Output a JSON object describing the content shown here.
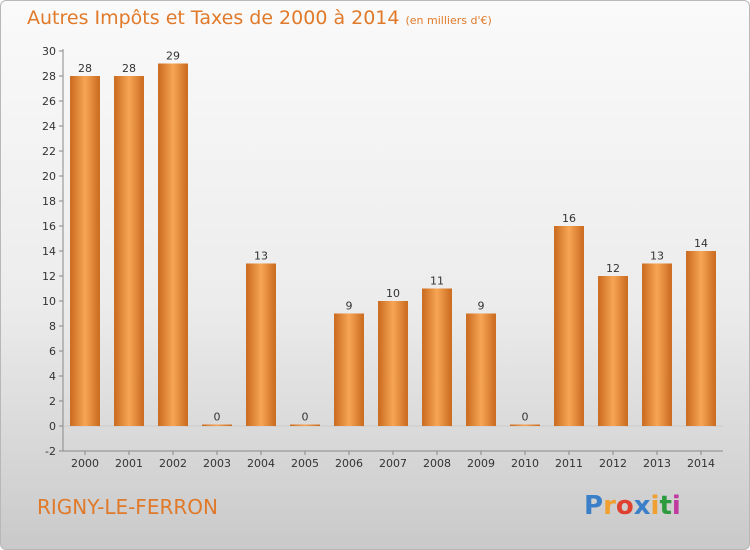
{
  "title": "Autres Impôts et Taxes de 2000 à 2014",
  "unit_note": "(en milliers d'€)",
  "commune": "RIGNY-LE-FERRON",
  "logo": {
    "letters": [
      "P",
      "r",
      "o",
      "x",
      "i",
      "t",
      "i"
    ],
    "colors": [
      "#3a7fc8",
      "#f0a030",
      "#e04030",
      "#3a7fc8",
      "#f0a030",
      "#2e9a3e",
      "#c03aa0"
    ]
  },
  "colors": {
    "title": "#e07a2a",
    "bar_light": "#f7a655",
    "bar_dark": "#c9691e",
    "axis_text": "#333333"
  },
  "chart_data": {
    "type": "bar",
    "categories": [
      "2000",
      "2001",
      "2002",
      "2003",
      "2004",
      "2005",
      "2006",
      "2007",
      "2008",
      "2009",
      "2010",
      "2011",
      "2012",
      "2013",
      "2014"
    ],
    "values": [
      28,
      28,
      29,
      0,
      13,
      0,
      9,
      10,
      11,
      9,
      0,
      16,
      12,
      13,
      14
    ],
    "ylim": [
      -2,
      30
    ],
    "yticks": [
      -2,
      0,
      2,
      4,
      6,
      8,
      10,
      12,
      14,
      16,
      18,
      20,
      22,
      24,
      26,
      28,
      30
    ],
    "grid": false,
    "legend": "none",
    "data_labels": true
  }
}
